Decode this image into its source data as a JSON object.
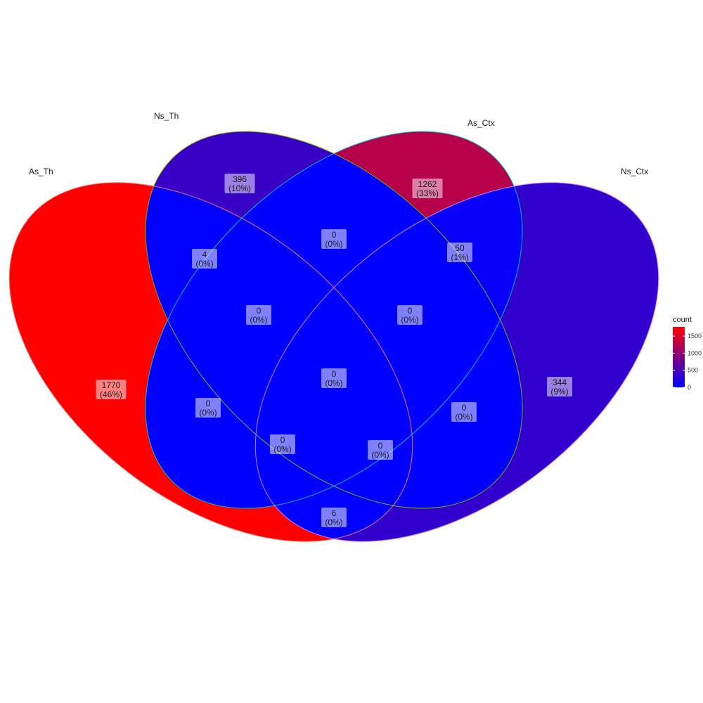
{
  "chart_data": {
    "type": "venn",
    "sets": [
      "As_Th",
      "Ns_Th",
      "As_Ctx",
      "Ns_Ctx"
    ],
    "regions": [
      {
        "sets": [
          "As_Th"
        ],
        "count": "1770",
        "percent": "(46%)"
      },
      {
        "sets": [
          "Ns_Th"
        ],
        "count": "396",
        "percent": "(10%)"
      },
      {
        "sets": [
          "As_Ctx"
        ],
        "count": "1262",
        "percent": "(33%)"
      },
      {
        "sets": [
          "Ns_Ctx"
        ],
        "count": "344",
        "percent": "(9%)"
      },
      {
        "sets": [
          "As_Th",
          "Ns_Th"
        ],
        "count": "4",
        "percent": "(0%)"
      },
      {
        "sets": [
          "Ns_Th",
          "As_Ctx"
        ],
        "count": "0",
        "percent": "(0%)"
      },
      {
        "sets": [
          "As_Ctx",
          "Ns_Ctx"
        ],
        "count": "50",
        "percent": "(1%)"
      },
      {
        "sets": [
          "As_Th",
          "Ns_Th",
          "As_Ctx"
        ],
        "count": "0",
        "percent": "(0%)"
      },
      {
        "sets": [
          "Ns_Th",
          "As_Ctx",
          "Ns_Ctx"
        ],
        "count": "0",
        "percent": "(0%)"
      },
      {
        "sets": [
          "As_Th",
          "Ns_Th",
          "As_Ctx",
          "Ns_Ctx"
        ],
        "count": "0",
        "percent": "(0%)"
      },
      {
        "sets": [
          "As_Th",
          "As_Ctx"
        ],
        "count": "0",
        "percent": "(0%)"
      },
      {
        "sets": [
          "Ns_Th",
          "Ns_Ctx"
        ],
        "count": "0",
        "percent": "(0%)"
      },
      {
        "sets": [
          "As_Th",
          "As_Ctx",
          "Ns_Ctx"
        ],
        "count": "0",
        "percent": "(0%)"
      },
      {
        "sets": [
          "As_Th",
          "Ns_Th",
          "Ns_Ctx"
        ],
        "count": "0",
        "percent": "(0%)"
      },
      {
        "sets": [
          "As_Th",
          "Ns_Ctx"
        ],
        "count": "6",
        "percent": "(0%)"
      }
    ],
    "legend": {
      "title": "count",
      "ticks": [
        1500,
        1000,
        500,
        0
      ],
      "min": 0,
      "max": 1770,
      "color_low": "#0000ff",
      "color_high": "#ff0000"
    }
  },
  "colors": {
    "low": "#0000ff",
    "high": "#ff0000",
    "outline_As_Th": "#e6736a",
    "outline_Ns_Th": "#7cae00",
    "outline_As_Ctx": "#00bfc4",
    "outline_Ns_Ctx": "#c77cff"
  }
}
